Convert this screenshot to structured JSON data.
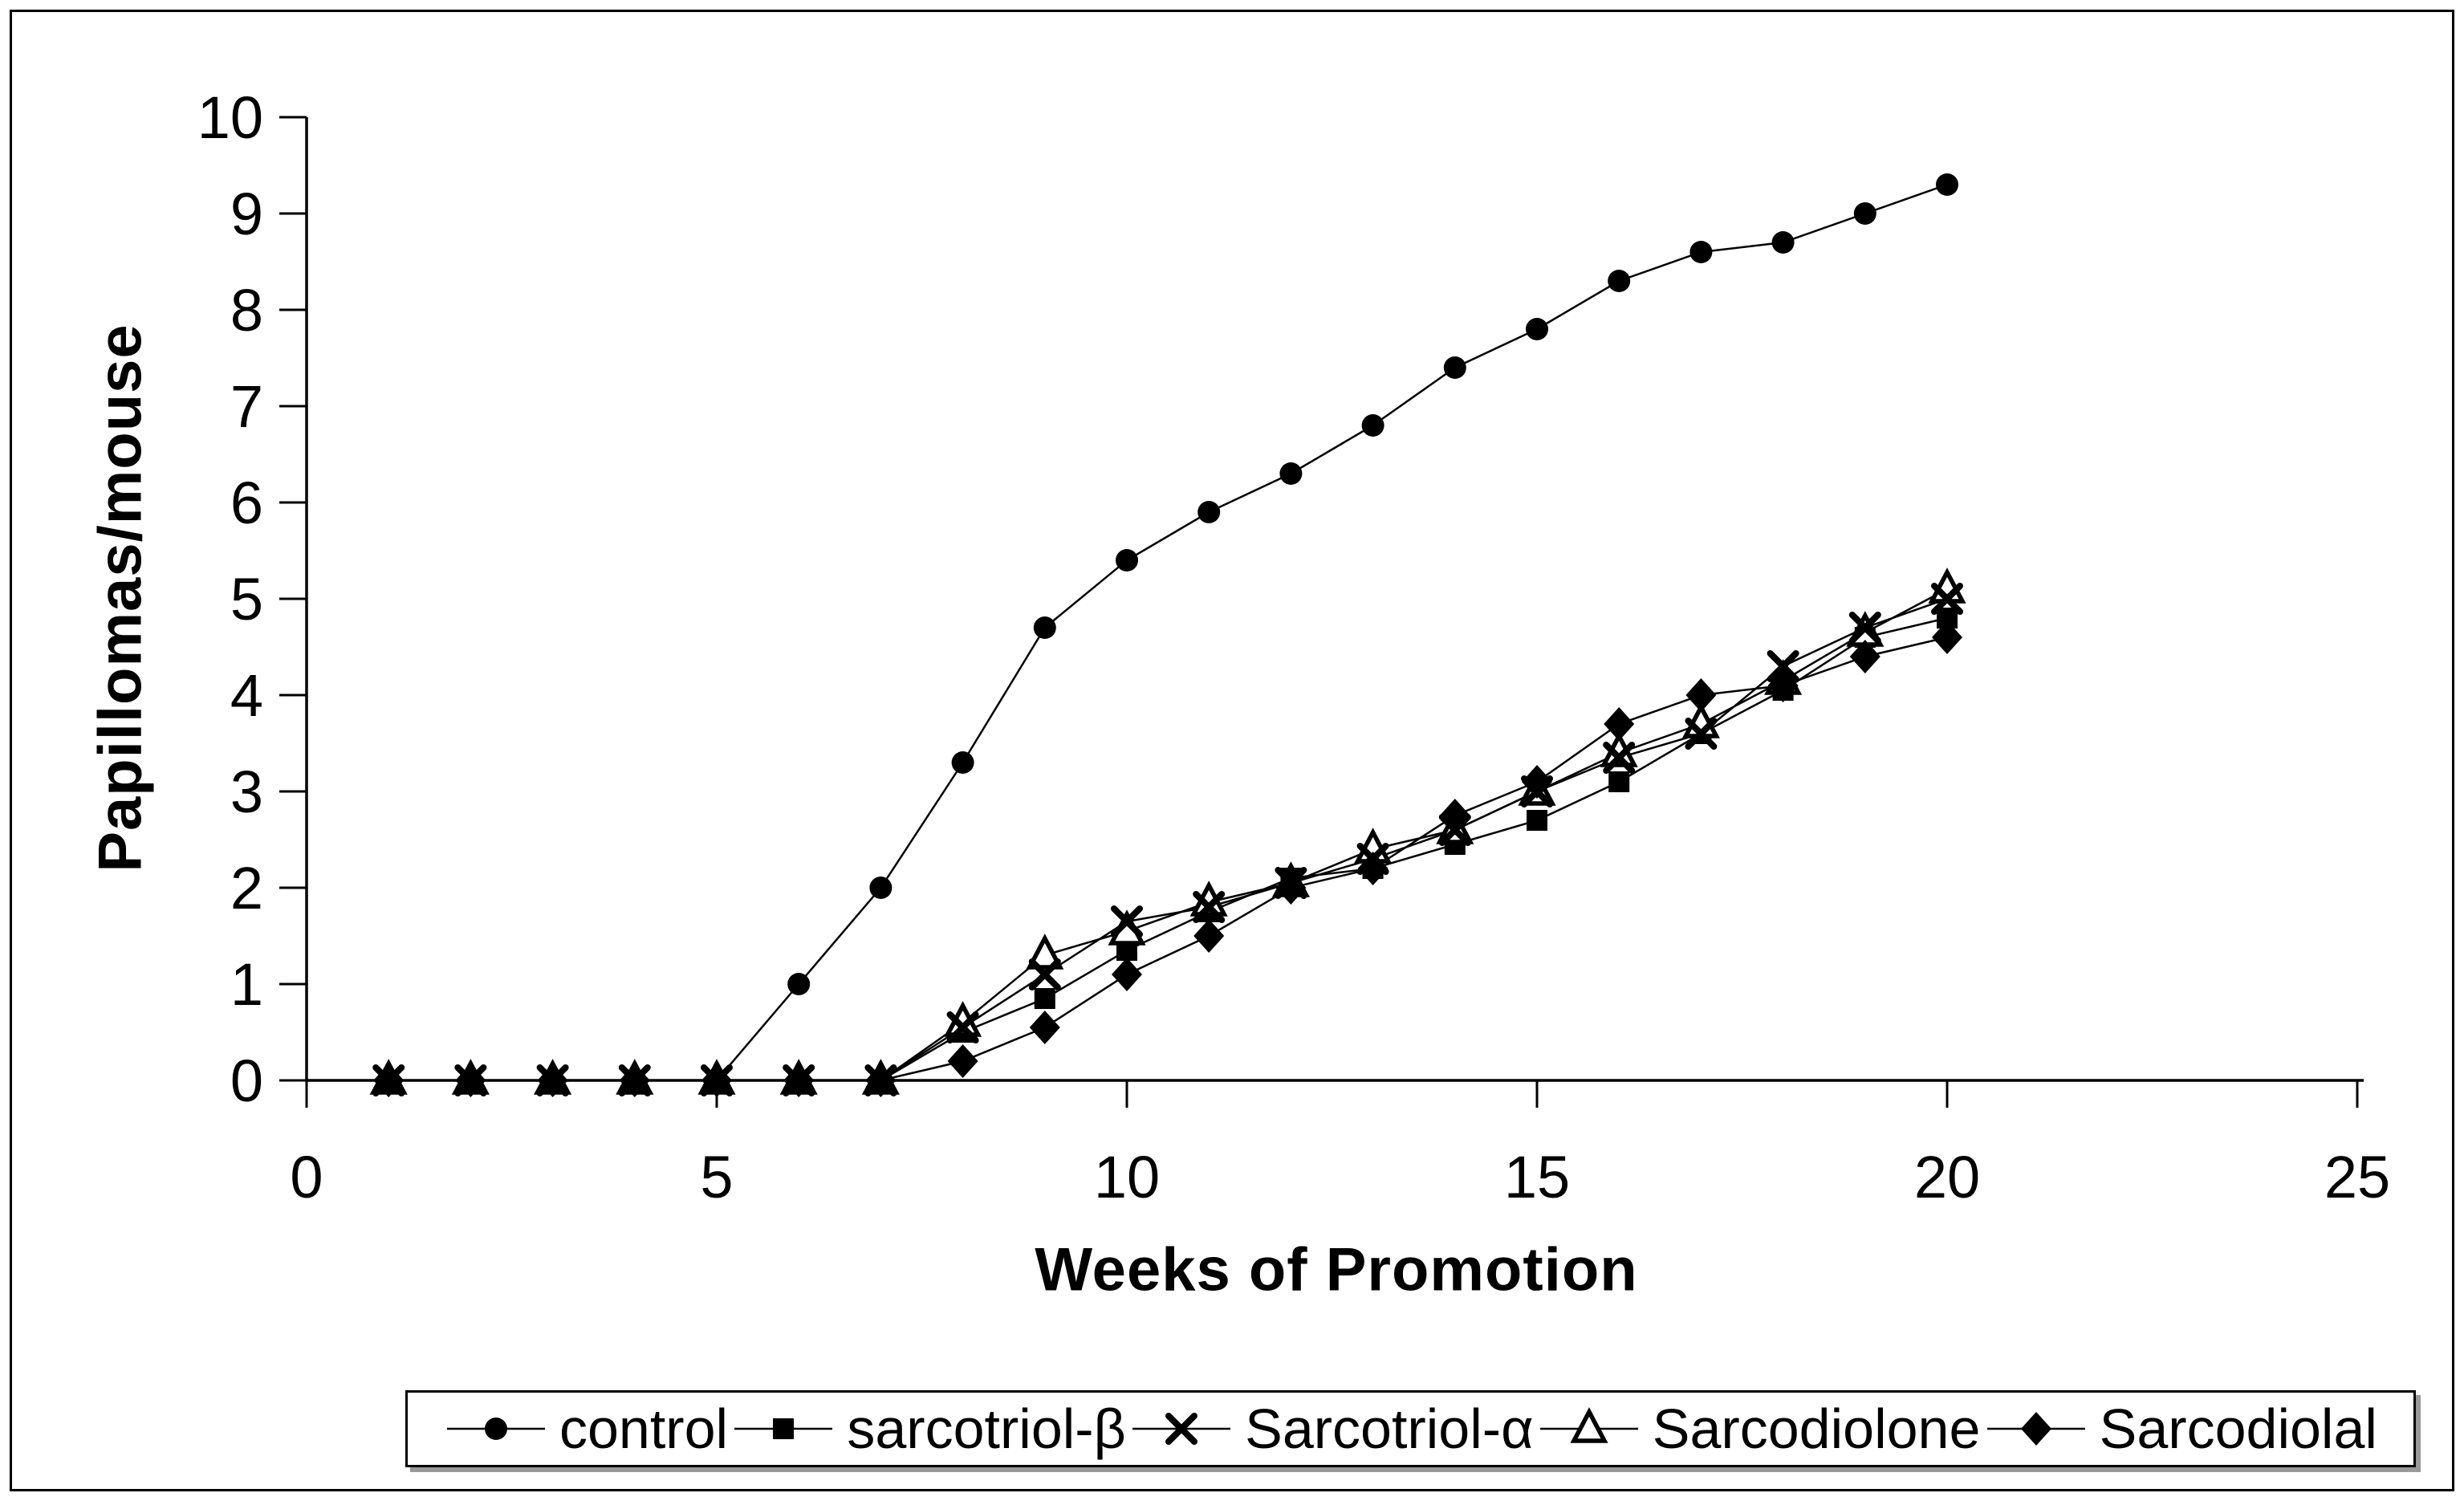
{
  "chart_data": {
    "type": "line",
    "title": "",
    "xlabel": "Weeks of Promotion",
    "ylabel": "Papillomas/mouse",
    "xlim": [
      0,
      25
    ],
    "ylim": [
      0,
      10
    ],
    "x_ticks": [
      0,
      5,
      10,
      15,
      20,
      25
    ],
    "y_ticks": [
      0,
      1,
      2,
      3,
      4,
      5,
      6,
      7,
      8,
      9,
      10
    ],
    "grid": false,
    "legend_position": "bottom",
    "x": [
      1,
      2,
      3,
      4,
      5,
      6,
      7,
      8,
      9,
      10,
      11,
      12,
      13,
      14,
      15,
      16,
      17,
      18,
      19,
      20
    ],
    "series": [
      {
        "name": "control",
        "marker": "circle",
        "color": "#000000",
        "values": [
          0,
          0,
          0,
          0,
          0,
          1.0,
          2.0,
          3.3,
          4.7,
          5.4,
          5.9,
          6.3,
          6.8,
          7.4,
          7.8,
          8.3,
          8.6,
          8.7,
          9.0,
          9.3
        ]
      },
      {
        "name": "sarcotriol-β",
        "marker": "square",
        "color": "#000000",
        "values": [
          0,
          0,
          0,
          0,
          0,
          0,
          0,
          0.5,
          0.85,
          1.35,
          1.75,
          2.1,
          2.2,
          2.45,
          2.7,
          3.1,
          3.6,
          4.05,
          4.6,
          4.8
        ]
      },
      {
        "name": "Sarcotriol-α",
        "marker": "x",
        "color": "#000000",
        "values": [
          0,
          0,
          0,
          0,
          0,
          0,
          0,
          0.55,
          1.1,
          1.65,
          1.8,
          2.05,
          2.3,
          2.6,
          3.0,
          3.35,
          3.6,
          4.3,
          4.7,
          5.0
        ]
      },
      {
        "name": "Sarcodiolone",
        "marker": "triangle-open",
        "color": "#000000",
        "values": [
          0,
          0,
          0,
          0,
          0,
          0,
          0,
          0.6,
          1.3,
          1.55,
          1.85,
          2.05,
          2.4,
          2.6,
          3.0,
          3.4,
          3.7,
          4.15,
          4.65,
          5.1
        ]
      },
      {
        "name": "Sarcodiolal",
        "marker": "diamond",
        "color": "#000000",
        "values": [
          0,
          0,
          0,
          0,
          0,
          0,
          0,
          0.2,
          0.55,
          1.1,
          1.5,
          2.0,
          2.2,
          2.75,
          3.1,
          3.7,
          4.0,
          4.1,
          4.4,
          4.6
        ]
      }
    ],
    "colors": {
      "ink": "#000000",
      "background": "#ffffff"
    }
  }
}
